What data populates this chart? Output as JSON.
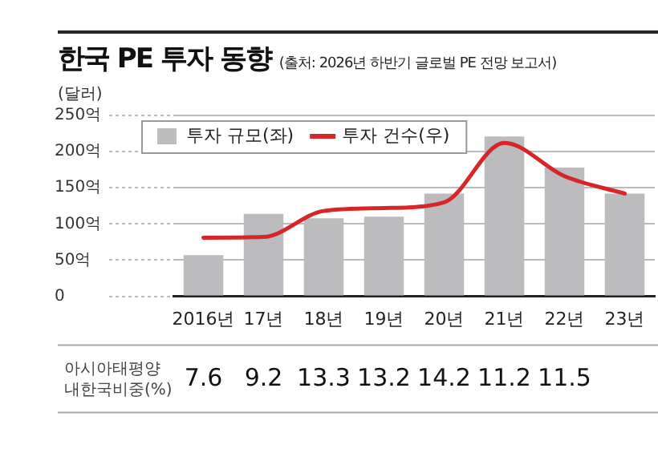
{
  "chart_data": {
    "type": "bar",
    "title": "한국 PE 투자 동향",
    "subtitle": "(출처: 2026년 하반기 글로벌 PE 전망 보고서)",
    "ylabel": "(달러)",
    "categories": [
      "2016년",
      "17년",
      "18년",
      "19년",
      "20년",
      "21년",
      "22년",
      "23년"
    ],
    "series": [
      {
        "name": "투자 규모(좌)",
        "color": "#bcbcbe",
        "values": [
          57,
          114,
          108,
          110,
          142,
          221,
          178,
          142
        ]
      },
      {
        "name": "투자 건수(우)",
        "type": "line",
        "color": "#d7262a",
        "values": [
          81,
          82,
          118,
          122,
          130,
          212,
          166,
          142
        ]
      }
    ],
    "ylim": [
      0,
      250
    ],
    "yticks": [
      {
        "value": 0,
        "label": "0"
      },
      {
        "value": 50,
        "label": "50억"
      },
      {
        "value": 100,
        "label": "100억"
      },
      {
        "value": 150,
        "label": "150억"
      },
      {
        "value": 200,
        "label": "200억"
      },
      {
        "value": 250,
        "label": "250억"
      }
    ],
    "grid": "y",
    "legend": "top left",
    "marker": "none",
    "annotations": [
      "아시아태평양\n내한국비중(%)",
      "7.6",
      "9.2",
      "13.3",
      "13.2",
      "14.2",
      "11.2",
      "11.5"
    ]
  }
}
